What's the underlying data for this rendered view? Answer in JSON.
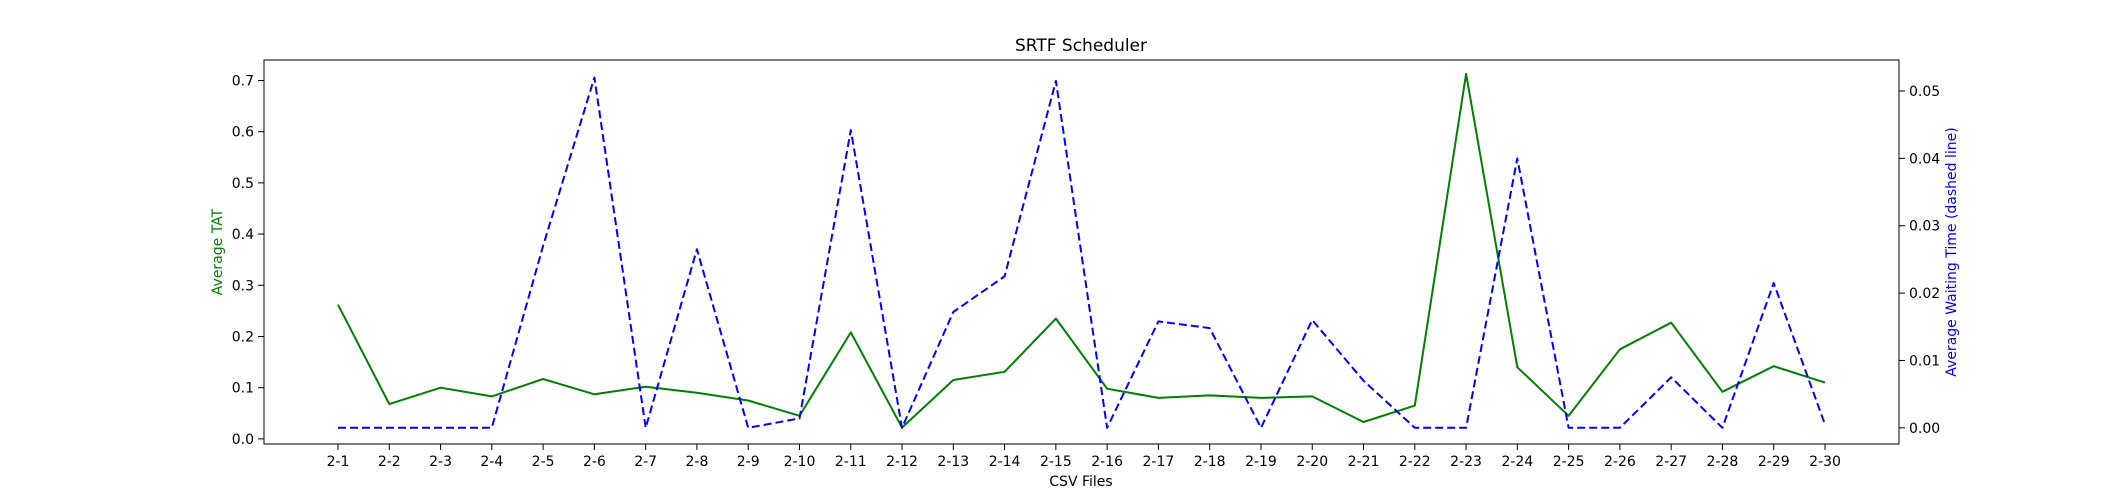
{
  "chart_data": {
    "type": "line",
    "title": "SRTF Scheduler",
    "xlabel": "CSV Files",
    "ylabel": "Average TAT",
    "ylabel_right": "Average Waiting Time (dashed line)",
    "categories": [
      "2-1",
      "2-2",
      "2-3",
      "2-4",
      "2-5",
      "2-6",
      "2-7",
      "2-8",
      "2-9",
      "2-10",
      "2-11",
      "2-12",
      "2-13",
      "2-14",
      "2-15",
      "2-16",
      "2-17",
      "2-18",
      "2-19",
      "2-20",
      "2-21",
      "2-22",
      "2-23",
      "2-24",
      "2-25",
      "2-26",
      "2-27",
      "2-28",
      "2-29",
      "2-30"
    ],
    "ylim": [
      -0.01,
      0.74
    ],
    "ylim_right": [
      -0.0024,
      0.0546
    ],
    "yticks": [
      "0.0",
      "0.1",
      "0.2",
      "0.3",
      "0.4",
      "0.5",
      "0.6",
      "0.7"
    ],
    "yticks_right": [
      "0.00",
      "0.01",
      "0.02",
      "0.03",
      "0.04",
      "0.05"
    ],
    "grid": false,
    "series": [
      {
        "axis": "left",
        "color": "#008000",
        "dash": false,
        "values": [
          0.262,
          0.068,
          0.1,
          0.083,
          0.117,
          0.087,
          0.102,
          0.09,
          0.075,
          0.045,
          0.208,
          0.022,
          0.115,
          0.131,
          0.235,
          0.098,
          0.08,
          0.085,
          0.08,
          0.083,
          0.033,
          0.065,
          0.713,
          0.14,
          0.045,
          0.175,
          0.227,
          0.092,
          0.142,
          0.11
        ]
      },
      {
        "axis": "right",
        "color": "#0000ff",
        "dash": true,
        "values": [
          0.0,
          0.0,
          0.0,
          0.0,
          0.027,
          0.052,
          0.0,
          0.0265,
          0.0,
          0.0014,
          0.0442,
          0.0,
          0.0172,
          0.0225,
          0.0515,
          0.0,
          0.0158,
          0.0148,
          0.0,
          0.016,
          0.007,
          0.0,
          0.0,
          0.04,
          0.0,
          0.0,
          0.0075,
          0.0,
          0.0215,
          0.0005
        ]
      }
    ]
  }
}
